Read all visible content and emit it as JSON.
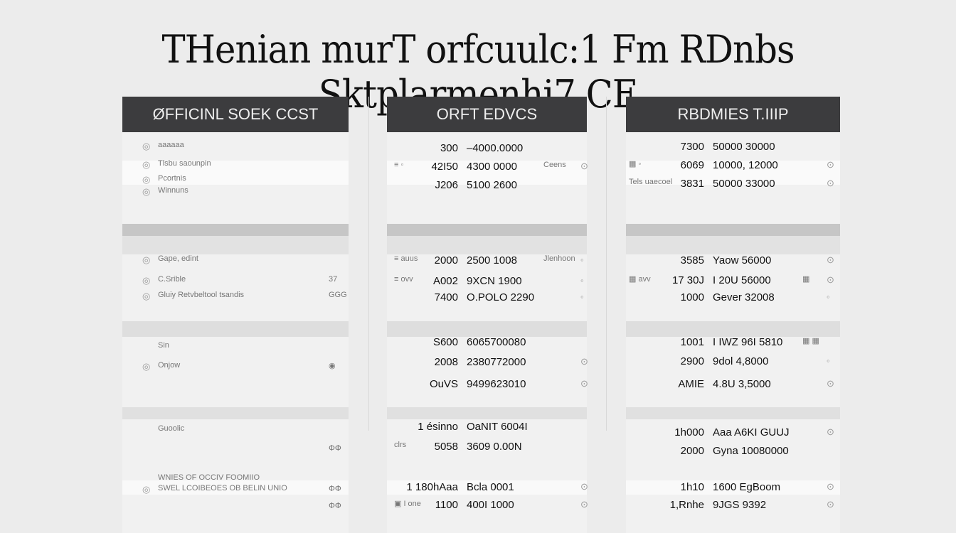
{
  "title": "THenian murT orfcuulc:1 Fm RDnbs Sktplarmenhi7 CE",
  "columns": [
    {
      "header": "ØFFICINL SOEK CCST",
      "rows": [
        {
          "label": "aaaaaa",
          "icon": "circle-icon"
        },
        {
          "label": "Tlsbu saounpin",
          "icon": "circle-icon"
        },
        {
          "label": "Pcortnis",
          "icon": "circle-icon"
        },
        {
          "label": "Winnuns",
          "icon": "circle-icon"
        },
        {
          "label": "Gape, edint",
          "icon": "circle-icon"
        },
        {
          "label": "C.Srible",
          "icon": "circle-icon",
          "extra": "37"
        },
        {
          "label": "Gluiy Retvbeltool tsandis",
          "icon": "circle-icon",
          "extra": "GGG"
        },
        {
          "label": "Sin"
        },
        {
          "label": "Onjow",
          "icon": "circle-icon",
          "extra": "◉"
        },
        {
          "label": "Guoolic"
        },
        {
          "extra": "ՓՓ"
        },
        {
          "label": "WNIES OF OCCIV FOOMIIO"
        },
        {
          "label": "SWEL LCOIBEOES OB BELIN UNIO",
          "icon": "circle-icon",
          "extra": "ՓՓ"
        },
        {
          "extra": "ՓՓ"
        }
      ]
    },
    {
      "header": "ORFT EDVCS",
      "rows": [
        {
          "a": "300",
          "b": "–4000.0000"
        },
        {
          "label": "≡  ◦",
          "a": "42I50",
          "b": "4300 0000",
          "extra": "Ceens",
          "icon": "⊙"
        },
        {
          "a": "J206",
          "b": "5100 2600"
        },
        {
          "label": "≡  auus",
          "a": "2000",
          "b": "2500 1008",
          "extra": "Jlenhoon",
          "icon": "◦"
        },
        {
          "label": "≡  ovv",
          "a": "A002",
          "b": "9XCN 1900",
          "icon": "◦"
        },
        {
          "a": "7400",
          "b": "O.POLO 2290",
          "icon": "◦"
        },
        {
          "a": "S600",
          "b": "6065700080"
        },
        {
          "a": "2008",
          "b": "2380772000",
          "icon": "⊙"
        },
        {
          "a": "OuVS",
          "b": "9499623010",
          "icon": "⊙"
        },
        {
          "a": "1 ésinno",
          "b": "OaNIT 6004I"
        },
        {
          "label": "clrs",
          "a": "5058",
          "b": "3609 0.00N"
        },
        {
          "a": "1 180hAaa",
          "b": "Bcla 0001",
          "icon": "⊙"
        },
        {
          "label": "▣ I one",
          "a": "1100",
          "b": "400I 1000",
          "icon": "⊙"
        }
      ]
    },
    {
      "header": "RBDMIES T.IIIP",
      "rows": [
        {
          "a": "7300",
          "b": "50000 30000"
        },
        {
          "label": "▦  ◦",
          "a": "6069",
          "b": "10000, 12000",
          "icon": "⊙"
        },
        {
          "label": "Tels uaecoel",
          "a": "3831",
          "b": "50000 33000",
          "icon": "⊙"
        },
        {
          "a": "3585",
          "b": "Yaow  56000",
          "icon": "⊙"
        },
        {
          "label": "▦  avv",
          "a": "17 30J",
          "b": "I 20U  56000",
          "extra": "▦",
          "icon": "⊙"
        },
        {
          "a": "1000",
          "b": "Gever  32008",
          "icon": "◦"
        },
        {
          "a": "1001",
          "b": "I IWZ 96I 5810",
          "extra": "▦ ▦"
        },
        {
          "a": "2900",
          "b": "9dol 4,8000",
          "icon": "◦"
        },
        {
          "a": "AMIE",
          "b": "4.8U 3,5000",
          "icon": "⊙"
        },
        {
          "a": "1h000",
          "b": "Aaa A6KI GUUJ",
          "icon": "⊙"
        },
        {
          "a": "2000",
          "b": "Gyna  10080000"
        },
        {
          "a": "1h10",
          "b": "1600  EgBoom",
          "icon": "⊙"
        },
        {
          "a": "1,Rnhe",
          "b": "9JGS  9392",
          "icon": "⊙"
        }
      ]
    }
  ],
  "colors": {
    "header_bg": "#3c3c3e",
    "background": "#ececec"
  }
}
